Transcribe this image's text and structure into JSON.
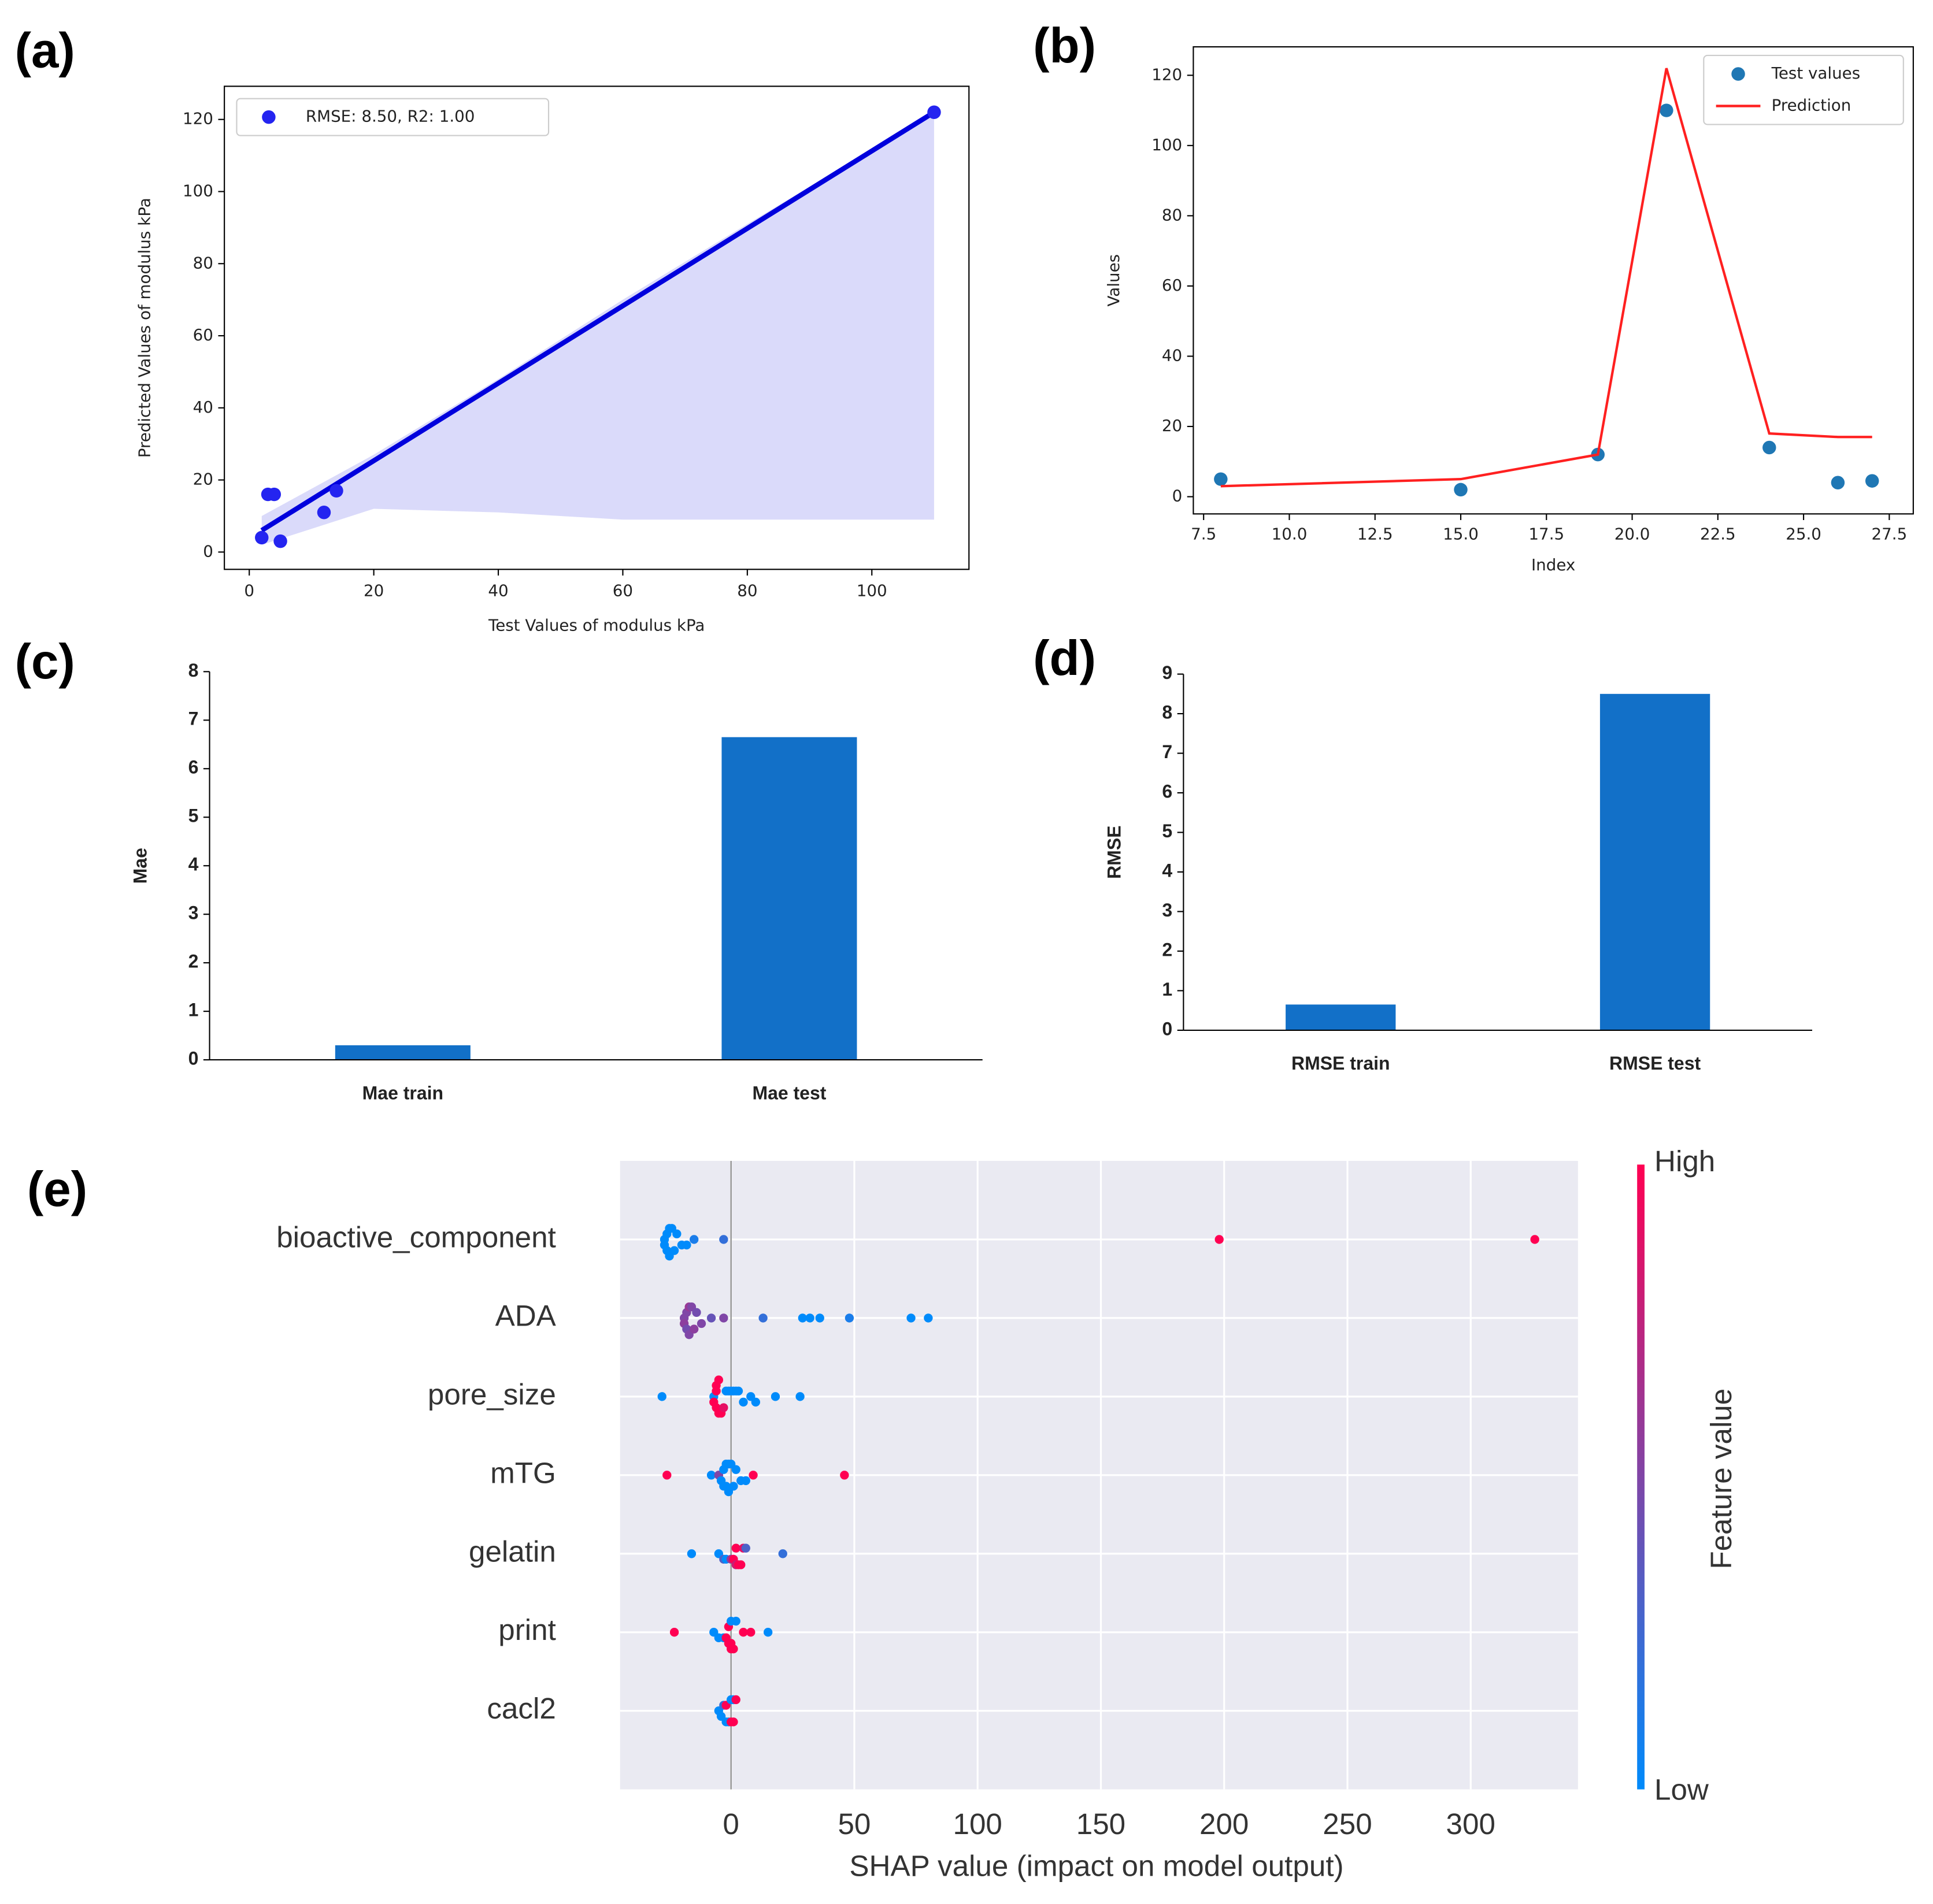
{
  "chart_data": [
    {
      "type": "scatter",
      "panel_label": "(a)",
      "x_label": "Test Values of modulus kPa",
      "y_label": "Predicted Values of modulus kPa",
      "series": [
        {
          "name": "RMSE: 8.50, R2: 1.00",
          "color": "#2424f0",
          "x": [
            2,
            3,
            4,
            5,
            12,
            14,
            110
          ],
          "values": [
            4,
            16,
            16,
            3,
            11,
            17,
            122
          ]
        }
      ],
      "fit": {
        "color": "#0000dd",
        "x": [
          2,
          110
        ],
        "values": [
          6,
          122
        ]
      },
      "band": {
        "color": "#dadafa",
        "x": [
          2,
          20,
          40,
          60,
          80,
          110
        ],
        "lower": [
          2,
          12,
          11,
          9,
          9,
          9
        ],
        "upper": [
          10,
          27,
          48,
          70,
          91,
          122
        ]
      },
      "xlim": [
        -4,
        115.6
      ],
      "xticks": [
        0,
        20,
        40,
        60,
        80,
        100
      ],
      "ylim": [
        -4.8,
        129.2
      ],
      "yticks": [
        0,
        20,
        40,
        60,
        80,
        100,
        120
      ],
      "legend": "upper left"
    },
    {
      "type": "line",
      "panel_label": "(b)",
      "x_label": "Index",
      "y_label": "Values",
      "x": [
        8,
        15,
        19,
        21,
        24,
        26,
        27
      ],
      "series": [
        {
          "name": "Test values",
          "style": "scatter",
          "color": "#1f77b4",
          "values": [
            5,
            2,
            12,
            110,
            14,
            4,
            4.5
          ]
        },
        {
          "name": "Prediction",
          "style": "line",
          "color": "#ff2020",
          "values": [
            3,
            5,
            12,
            122,
            18,
            17,
            17
          ]
        }
      ],
      "xlim": [
        7.2,
        28.2
      ],
      "xticks": [
        7.5,
        {
          "value": 10,
          "label": "10.0"
        },
        12.5,
        {
          "value": 15,
          "label": "15.0"
        },
        17.5,
        {
          "value": 20,
          "label": "20.0"
        },
        22.5,
        {
          "value": 25,
          "label": "25.0"
        },
        27.5
      ],
      "ylim": [
        -4.9,
        128.1
      ],
      "yticks": [
        0,
        20,
        40,
        60,
        80,
        100,
        120
      ],
      "legend": "upper right"
    },
    {
      "type": "bar",
      "panel_label": "(c)",
      "y_label": "Mae",
      "categories": [
        "Mae train",
        "Mae test"
      ],
      "values": [
        0.3,
        6.65
      ],
      "color": "#1270c8",
      "ylim": [
        0,
        8
      ],
      "yticks": [
        0,
        1,
        2,
        3,
        4,
        5,
        6,
        7,
        8
      ]
    },
    {
      "type": "bar",
      "panel_label": "(d)",
      "y_label": "RMSE",
      "categories": [
        "RMSE train",
        "RMSE test"
      ],
      "values": [
        0.65,
        8.5
      ],
      "color": "#1270c8",
      "ylim": [
        0,
        9
      ],
      "yticks": [
        0,
        1,
        2,
        3,
        4,
        5,
        6,
        7,
        8,
        9
      ]
    },
    {
      "type": "beeswarm",
      "panel_label": "(e)",
      "x_label": "SHAP value (impact on model output)",
      "colorbar": {
        "label": "Feature value",
        "high": "High",
        "low": "Low",
        "low_color": "#008bfb",
        "high_color": "#ff0052"
      },
      "xlim": [
        -45,
        343.5
      ],
      "xticks": [
        0,
        50,
        100,
        150,
        200,
        250,
        300
      ],
      "series": [
        {
          "name": "bioactive_component",
          "values": [
            -27,
            -27,
            -26,
            -26,
            -25,
            -25,
            -24,
            -23,
            -22,
            -20,
            -18,
            -15,
            -3,
            198,
            326
          ],
          "feature_values": [
            0,
            0,
            0,
            0,
            0,
            0,
            0,
            0,
            0,
            0,
            0,
            0.1,
            0.2,
            1,
            1
          ]
        },
        {
          "name": "ADA",
          "values": [
            -19,
            -19,
            -18,
            -18,
            -17,
            -17,
            -16,
            -15,
            -14,
            -12,
            -8,
            -3,
            13,
            29,
            32,
            36,
            48,
            73,
            80
          ],
          "feature_values": [
            0.5,
            0.55,
            0.5,
            0.45,
            0.6,
            0.5,
            0.5,
            0.55,
            0.45,
            0.5,
            0.4,
            0.5,
            0.2,
            0,
            0,
            0,
            0.1,
            0,
            0
          ]
        },
        {
          "name": "pore_size",
          "values": [
            -28,
            -7,
            -7,
            -6,
            -6,
            -6,
            -5,
            -5,
            -4,
            -3,
            -2,
            -1,
            0,
            1,
            2,
            3,
            5,
            8,
            10,
            18,
            28
          ],
          "feature_values": [
            0,
            0,
            1,
            1,
            1,
            1,
            1,
            1,
            1,
            0.9,
            0,
            0,
            0,
            0,
            0,
            0,
            0,
            0,
            0,
            0,
            0
          ]
        },
        {
          "name": "mTG",
          "values": [
            -26,
            -8,
            -5,
            -4,
            -3,
            -3,
            -2,
            -2,
            -1,
            -1,
            0,
            1,
            2,
            4,
            6,
            9,
            46
          ],
          "feature_values": [
            1,
            0,
            0.5,
            0,
            0,
            0,
            0,
            0,
            0,
            0,
            0,
            0,
            0,
            0,
            0,
            1,
            1
          ]
        },
        {
          "name": "gelatin",
          "values": [
            -16,
            -5,
            -3,
            -2,
            0,
            1,
            2,
            2,
            3,
            4,
            5,
            6,
            21
          ],
          "feature_values": [
            0,
            0,
            0.3,
            0,
            0.6,
            1,
            1,
            0.8,
            1,
            1,
            0.9,
            0.3,
            0.2
          ]
        },
        {
          "name": "print",
          "values": [
            -23,
            -7,
            -5,
            -3,
            -2,
            -1,
            -1,
            0,
            0,
            0,
            1,
            2,
            5,
            8,
            15
          ],
          "feature_values": [
            1,
            0,
            0,
            0,
            1,
            1,
            1,
            1,
            0,
            1,
            1,
            0,
            1,
            1,
            0
          ]
        },
        {
          "name": "cacl2",
          "values": [
            -5,
            -4,
            -3,
            -2,
            -2,
            -1,
            0,
            0,
            1,
            1,
            2
          ],
          "feature_values": [
            0,
            0,
            0.2,
            1,
            0,
            0,
            1,
            0,
            1,
            0,
            1
          ]
        }
      ]
    }
  ]
}
